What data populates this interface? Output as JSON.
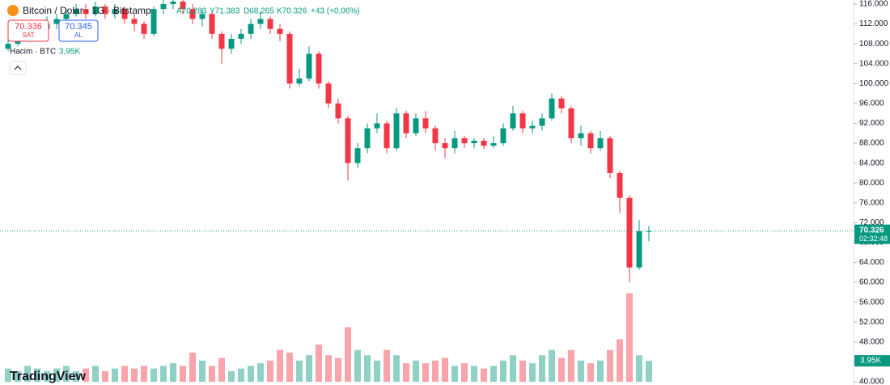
{
  "chart_data": {
    "type": "candlestick",
    "header": {
      "title": "Bitcoin / Dolar · 1G · Bitstamp",
      "ohlc_labels": [
        "A70.283",
        "Y71.383",
        "D68.265",
        "K70.326"
      ],
      "change": "+43 (+0,06%)"
    },
    "sell": {
      "price": "70.336",
      "label": "SAT"
    },
    "buy": {
      "price": "70.345",
      "label": "AL"
    },
    "brand": "TradingView",
    "up_color": "#089981",
    "down_color": "#f23645",
    "series": [
      {
        "name": "BTCUSD",
        "open": [
          107000,
          108000,
          109000,
          110000,
          111000,
          112000,
          113000,
          114000,
          115000,
          114000,
          115500,
          114000,
          115000,
          113000,
          112000,
          110000,
          115000,
          116000,
          116500,
          115000,
          113000,
          114000,
          110000,
          107000,
          109000,
          110000,
          112000,
          113000,
          111000,
          110000,
          100000,
          101000,
          106000,
          100000,
          96000,
          93000,
          84000,
          87000,
          91000,
          92000,
          87000,
          94000,
          90000,
          93000,
          91000,
          88000,
          87000,
          89000,
          88000,
          88500,
          87500,
          88000,
          91000,
          94000,
          91000,
          91500,
          93000,
          97000,
          95000,
          89000,
          90000,
          87000,
          89000,
          82000,
          77000,
          63000,
          70283
        ],
        "high": [
          109000,
          110000,
          111000,
          112000,
          113500,
          114000,
          115000,
          116000,
          116000,
          116500,
          116000,
          116000,
          115500,
          114000,
          112500,
          115500,
          117000,
          117500,
          117000,
          116000,
          115000,
          114500,
          110500,
          110000,
          111000,
          113000,
          114500,
          113500,
          112000,
          110500,
          103000,
          107500,
          106500,
          100500,
          97000,
          93500,
          88000,
          92000,
          94000,
          92500,
          95000,
          94500,
          94000,
          94500,
          91500,
          89000,
          90500,
          89500,
          89000,
          89000,
          89500,
          92000,
          95500,
          94500,
          92500,
          94000,
          98000,
          97500,
          95500,
          91500,
          90500,
          90500,
          89500,
          82500,
          77500,
          72500,
          71383
        ],
        "low": [
          106500,
          107500,
          108500,
          109500,
          110500,
          111000,
          112500,
          113500,
          113000,
          113500,
          113000,
          113000,
          112000,
          110500,
          109000,
          109500,
          114000,
          115000,
          114000,
          112000,
          111500,
          109000,
          104000,
          106000,
          108000,
          109000,
          111000,
          110000,
          108500,
          99000,
          99500,
          100500,
          99000,
          95000,
          92000,
          80500,
          83000,
          86000,
          90000,
          86000,
          86500,
          89000,
          89500,
          90000,
          86500,
          85000,
          86000,
          87000,
          87000,
          86800,
          87000,
          87500,
          90500,
          90000,
          90000,
          90500,
          92500,
          94000,
          88000,
          87500,
          86000,
          86500,
          81000,
          74000,
          60000,
          62500,
          68265
        ],
        "close": [
          108000,
          109000,
          110000,
          111000,
          112000,
          113000,
          114000,
          115000,
          114000,
          115500,
          114000,
          115000,
          113000,
          112000,
          110000,
          115000,
          116000,
          116500,
          115000,
          113000,
          114000,
          110000,
          107000,
          109000,
          110000,
          112000,
          113000,
          111000,
          110000,
          100000,
          101000,
          106000,
          100000,
          96000,
          93000,
          84000,
          87000,
          91000,
          92000,
          87000,
          94000,
          90000,
          93000,
          91000,
          88000,
          87000,
          89000,
          88000,
          88500,
          87500,
          88000,
          91000,
          94000,
          91000,
          91500,
          93000,
          97000,
          95000,
          89000,
          90000,
          87000,
          89000,
          82000,
          77000,
          63000,
          70283,
          70326
        ]
      }
    ],
    "volume": {
      "name": "Hacim · BTC",
      "last_value_label": "3,95K",
      "ylim": [
        0,
        72
      ],
      "values": [
        2.5,
        2,
        3,
        2.5,
        2,
        2.5,
        3,
        2,
        2.5,
        3,
        2,
        2.5,
        3,
        2.5,
        3,
        2.5,
        3,
        3.5,
        3,
        5.5,
        4,
        3,
        4.5,
        2,
        2.5,
        3,
        3.5,
        4,
        6,
        5.5,
        4,
        5,
        7,
        5,
        4.5,
        10.3,
        6,
        5,
        4,
        6,
        5,
        3.5,
        4,
        3.5,
        4,
        4.5,
        3,
        3.5,
        3,
        2.5,
        3,
        4,
        5,
        4,
        3.5,
        5,
        6,
        4.5,
        6,
        4,
        3.5,
        4,
        6,
        8,
        16.7,
        5,
        3.95
      ]
    },
    "price_tag": {
      "value": 70326,
      "label": "70.326",
      "countdown": "02:32:48"
    },
    "ylim": [
      40000,
      116000
    ],
    "yticks": [
      {
        "value": 116000,
        "label": "116.000"
      },
      {
        "value": 112000,
        "label": "112.000"
      },
      {
        "value": 108000,
        "label": "108.000"
      },
      {
        "value": 104000,
        "label": "104.000"
      },
      {
        "value": 100000,
        "label": "100.000"
      },
      {
        "value": 96000,
        "label": "96.000"
      },
      {
        "value": 92000,
        "label": "92.000"
      },
      {
        "value": 88000,
        "label": "88.000"
      },
      {
        "value": 84000,
        "label": "84.000"
      },
      {
        "value": 80000,
        "label": "80.000"
      },
      {
        "value": 76000,
        "label": "76.000"
      },
      {
        "value": 72000,
        "label": "72.000"
      },
      {
        "value": 68000,
        "label": "68.000"
      },
      {
        "value": 64000,
        "label": "64.000"
      },
      {
        "value": 60000,
        "label": "60.000"
      },
      {
        "value": 56000,
        "label": "56.000"
      },
      {
        "value": 52000,
        "label": "52.000"
      },
      {
        "value": 48000,
        "label": "48.000"
      },
      {
        "value": 44000,
        "label": "44.000"
      },
      {
        "value": 40000,
        "label": "40.000"
      }
    ]
  }
}
